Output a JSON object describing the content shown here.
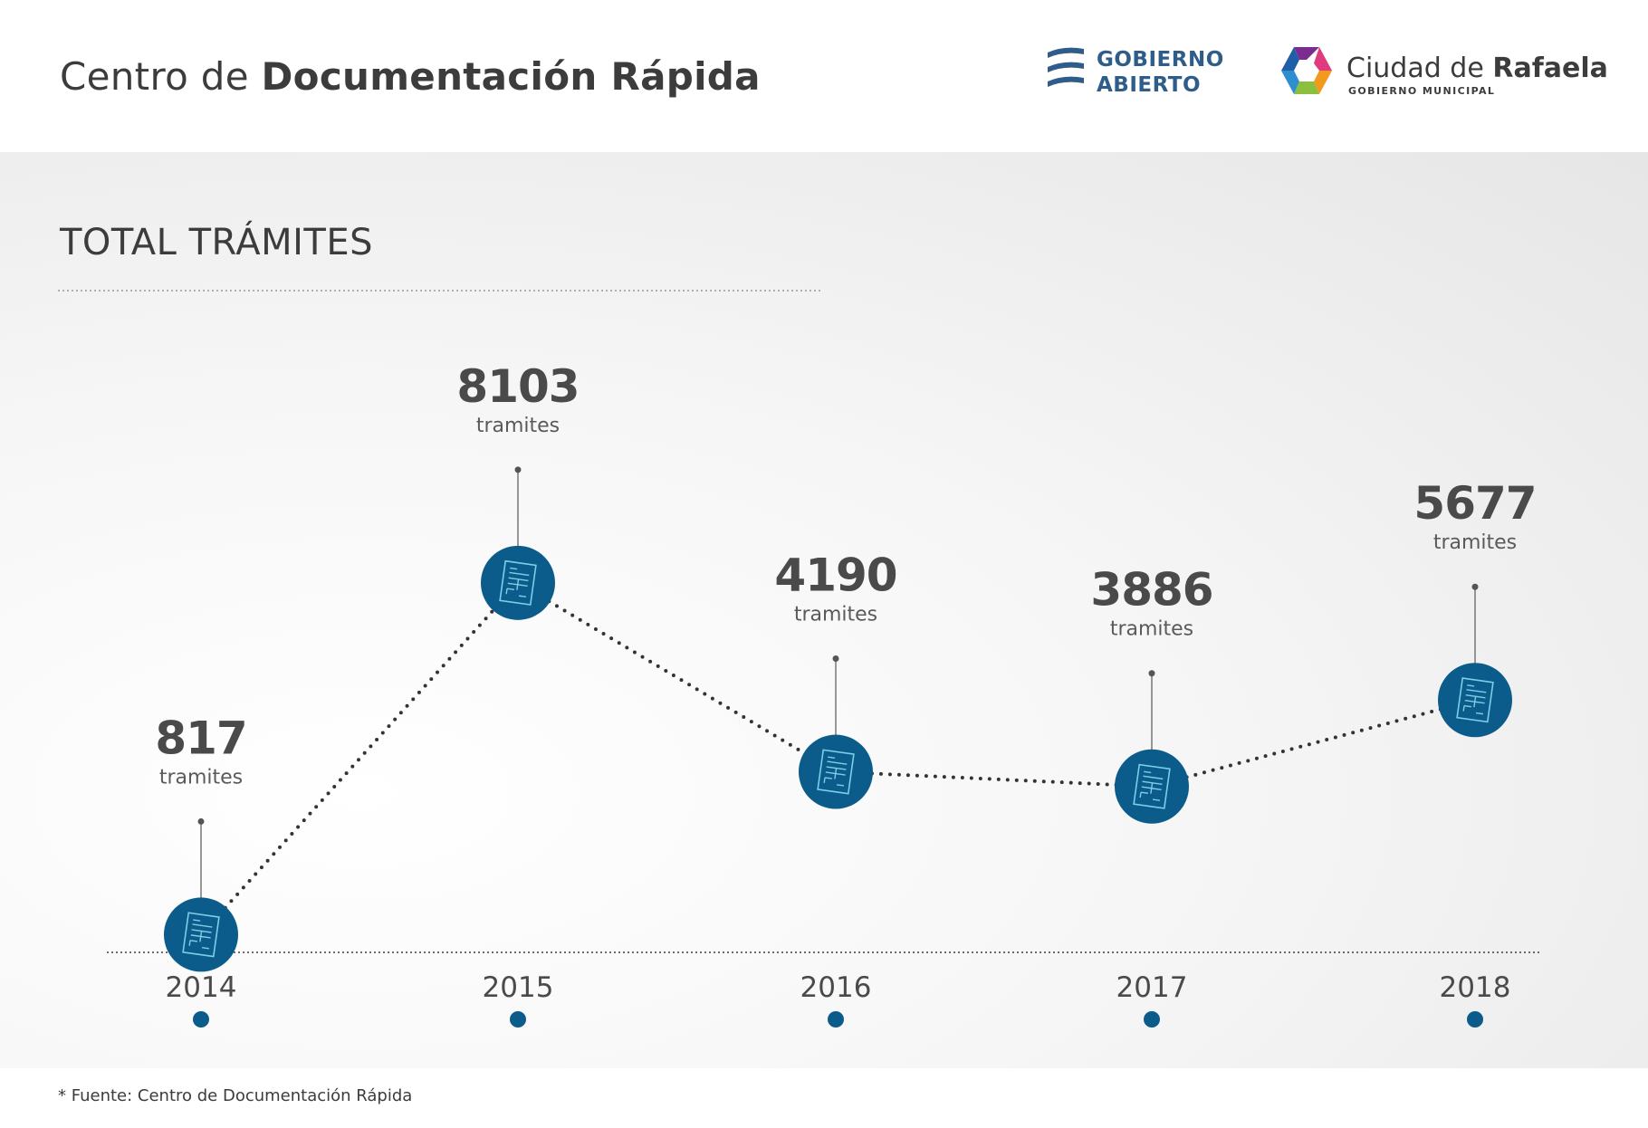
{
  "header": {
    "title_light": "Centro de",
    "title_bold": "Documentación Rápida",
    "logo_gobierno_abierto": {
      "line1": "GOBIERNO",
      "line2": "ABIERTO"
    },
    "logo_ciudad": {
      "name_light": "Ciudad de",
      "name_bold": "Rafaela",
      "subtitle": "GOBIERNO MUNICIPAL"
    }
  },
  "chart_data": {
    "type": "line",
    "title": "TOTAL TRÁMITES",
    "categories": [
      "2014",
      "2015",
      "2016",
      "2017",
      "2018"
    ],
    "values": [
      817,
      8103,
      4190,
      3886,
      5677
    ],
    "value_unit_label": "tramites",
    "xlabel": "",
    "ylabel": "",
    "ylim": [
      0,
      9000
    ],
    "grid": false,
    "legend": "none",
    "line_style": "dotted",
    "marker_icon": "document-icon",
    "colors": {
      "marker": "#0b5c8a",
      "line": "#333333",
      "text": "#4a4a4a"
    }
  },
  "footnote": "* Fuente: Centro de Documentación Rápida"
}
